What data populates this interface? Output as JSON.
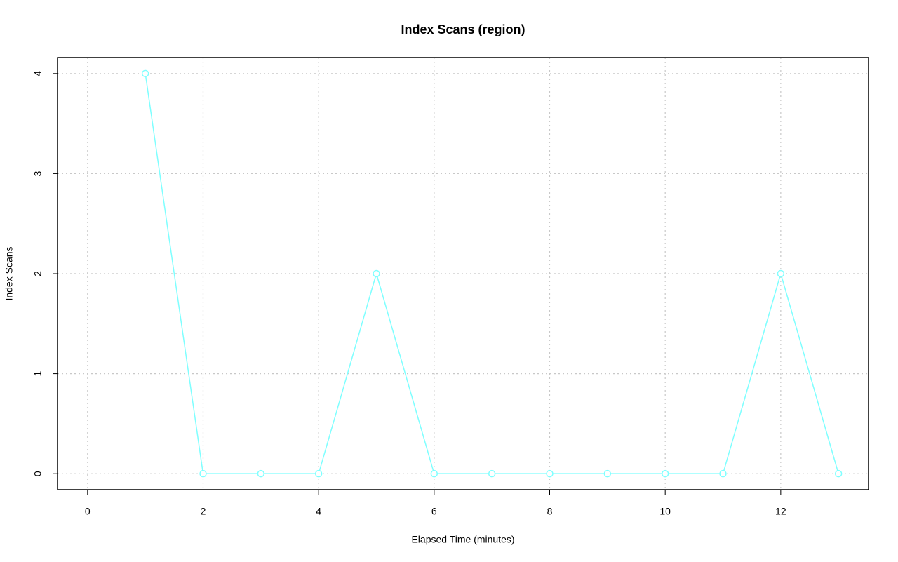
{
  "chart_data": {
    "type": "line",
    "title": "Index Scans (region)",
    "x_label": "Elapsed Time (minutes)",
    "y_label": "Index Scans",
    "x": [
      1,
      2,
      3,
      4,
      5,
      6,
      7,
      8,
      9,
      10,
      11,
      12,
      13
    ],
    "series": [
      {
        "name": "region",
        "color": "#7fffff",
        "values": [
          4,
          0,
          0,
          0,
          2,
          0,
          0,
          0,
          0,
          0,
          0,
          2,
          0
        ]
      }
    ],
    "xlim": [
      -0.52,
      13.52
    ],
    "xticks": [
      0,
      2,
      4,
      6,
      8,
      10,
      12
    ],
    "ylim": [
      -0.16,
      4.16
    ],
    "yticks": [
      0,
      1,
      2,
      3,
      4
    ],
    "grid": true
  }
}
